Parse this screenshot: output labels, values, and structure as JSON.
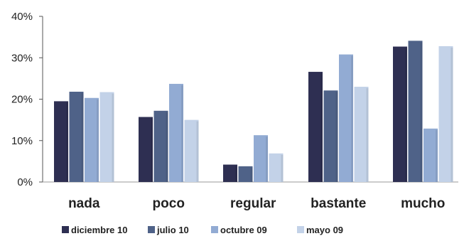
{
  "chart_data": {
    "type": "bar",
    "categories": [
      "nada",
      "poco",
      "regular",
      "bastante",
      "mucho"
    ],
    "series": [
      {
        "name": "diciembre 10",
        "values": [
          19.5,
          15.7,
          4.2,
          26.6,
          32.7
        ],
        "color": "#2e2f52"
      },
      {
        "name": "julio 10",
        "values": [
          21.8,
          17.2,
          3.8,
          22.1,
          34.1
        ],
        "color": "#4f6288"
      },
      {
        "name": "octubre 09",
        "values": [
          20.3,
          23.7,
          11.3,
          30.8,
          12.9
        ],
        "color": "#92abd3"
      },
      {
        "name": "mayo 09",
        "values": [
          21.7,
          15.0,
          6.9,
          23.0,
          32.8
        ],
        "color": "#c3d2e8"
      }
    ],
    "ylim": [
      0,
      40
    ],
    "yticks": [
      "0%",
      "10%",
      "20%",
      "30%",
      "40%"
    ],
    "ytick_values": [
      0,
      10,
      20,
      30,
      40
    ],
    "grid": false,
    "legend_position": "bottom",
    "title": "",
    "xlabel": "",
    "ylabel": ""
  }
}
